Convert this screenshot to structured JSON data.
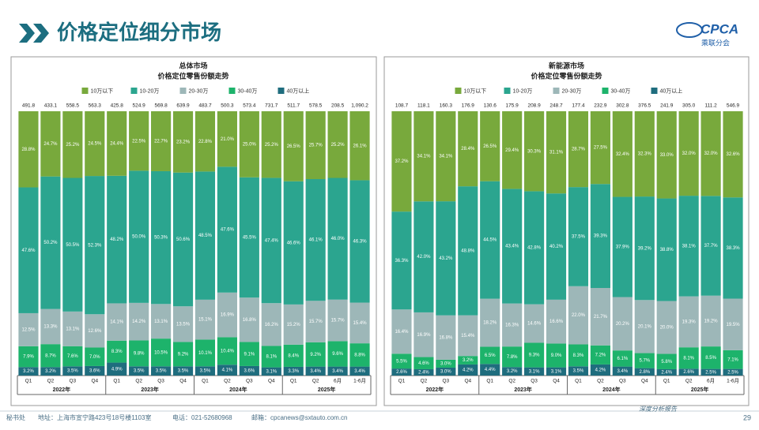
{
  "header": {
    "title": "价格定位细分市场",
    "logo": "CPCA",
    "logo_sub": "乘联分会"
  },
  "chart_data": [
    {
      "type": "bar",
      "stacked": true,
      "title": "总体市场",
      "subtitle": "价格定位零售份额走势",
      "categories": [
        "Q1",
        "Q2",
        "Q3",
        "Q4",
        "Q1",
        "Q2",
        "Q3",
        "Q4",
        "Q1",
        "Q2",
        "Q3",
        "Q4",
        "Q1",
        "Q2",
        "6月",
        "1-6月"
      ],
      "groups": [
        "2022年",
        "2023年",
        "2024年",
        "2025年"
      ],
      "totals": {
        "values": [
          491.8,
          433.1,
          558.5,
          563.3,
          425.8,
          524.9,
          569.8,
          639.9,
          483.7,
          500.3,
          573.4,
          731.7,
          511.7,
          578.5,
          208.5,
          1090.2
        ],
        "value_labels": [
          "491.8",
          "433.1",
          "558.5",
          "563.3",
          "425.8",
          "524.9",
          "569.8",
          "639.9",
          "483.7",
          "500.3",
          "573.4",
          "731.7",
          "511.7",
          "578.5",
          "208.5",
          "1,090.2"
        ]
      },
      "series": [
        {
          "name": "10万以下",
          "color": "#78a93c",
          "values": [
            28.8,
            24.7,
            25.2,
            24.5,
            24.4,
            22.5,
            22.7,
            23.2,
            22.8,
            21.0,
            25.0,
            25.2,
            26.5,
            25.7,
            25.2,
            26.1
          ],
          "value_labels": [
            "28.8%",
            "24.7%",
            "25.2%",
            "24.5%",
            "24.4%",
            "22.5%",
            "22.7%",
            "23.2%",
            "22.8%",
            "21.0%",
            "25.0%",
            "25.2%",
            "26.5%",
            "25.7%",
            "25.2%",
            "26.1%"
          ]
        },
        {
          "name": "10-20万",
          "color": "#2ba58f",
          "values": [
            47.6,
            50.2,
            50.5,
            52.3,
            48.2,
            50.0,
            50.3,
            50.6,
            48.5,
            47.6,
            45.5,
            47.4,
            46.6,
            46.1,
            46.0,
            46.3
          ],
          "value_labels": [
            "47.6%",
            "50.2%",
            "50.5%",
            "52.3%",
            "48.2%",
            "50.0%",
            "50.3%",
            "50.6%",
            "48.5%",
            "47.6%",
            "45.5%",
            "47.4%",
            "46.6%",
            "46.1%",
            "46.0%",
            "46.3%"
          ]
        },
        {
          "name": "20-30万",
          "color": "#9db7b8",
          "values": [
            12.5,
            13.3,
            13.1,
            12.6,
            14.1,
            14.2,
            13.1,
            13.5,
            15.1,
            16.9,
            16.8,
            16.2,
            15.2,
            15.7,
            15.7,
            15.4
          ],
          "value_labels": [
            "12.5%",
            "13.3%",
            "13.1%",
            "12.6%",
            "14.1%",
            "14.2%",
            "13.1%",
            "13.5%",
            "15.1%",
            "16.9%",
            "16.8%",
            "16.2%",
            "15.2%",
            "15.7%",
            "15.7%",
            "15.4%"
          ]
        },
        {
          "name": "30-40万",
          "color": "#1db36b",
          "values": [
            7.9,
            8.7,
            7.6,
            7.0,
            8.3,
            9.8,
            10.5,
            9.2,
            10.1,
            10.4,
            9.1,
            8.1,
            8.4,
            9.2,
            9.6,
            8.8
          ],
          "value_labels": [
            "7.9%",
            "8.7%",
            "7.6%",
            "7.0%",
            "8.3%",
            "9.8%",
            "10.5%",
            "9.2%",
            "10.1%",
            "10.4%",
            "9.1%",
            "8.1%",
            "8.4%",
            "9.2%",
            "9.6%",
            "8.8%"
          ]
        },
        {
          "name": "40万以上",
          "color": "#1f6d7e",
          "values": [
            3.2,
            3.2,
            3.5,
            3.6,
            4.9,
            3.5,
            3.5,
            3.5,
            3.5,
            4.1,
            3.6,
            3.1,
            3.3,
            3.4,
            3.4,
            3.4
          ],
          "value_labels": [
            "3.2%",
            "3.2%",
            "3.5%",
            "3.6%",
            "4.9%",
            "3.5%",
            "3.5%",
            "3.5%",
            "3.5%",
            "4.1%",
            "3.6%",
            "3.1%",
            "3.3%",
            "3.4%",
            "3.4%",
            "3.4%"
          ]
        }
      ]
    },
    {
      "type": "bar",
      "stacked": true,
      "title": "新能源市场",
      "subtitle": "价格定位零售份额走势",
      "categories": [
        "Q1",
        "Q2",
        "Q3",
        "Q4",
        "Q1",
        "Q2",
        "Q3",
        "Q4",
        "Q1",
        "Q2",
        "Q3",
        "Q4",
        "Q1",
        "Q2",
        "6月",
        "1-6月"
      ],
      "groups": [
        "2022年",
        "2023年",
        "2024年",
        "2025年"
      ],
      "totals": {
        "values": [
          108.7,
          118.1,
          160.3,
          176.9,
          130.6,
          175.9,
          208.9,
          248.7,
          177.4,
          232.9,
          302.8,
          376.5,
          241.9,
          305.0,
          111.2,
          546.9
        ],
        "value_labels": [
          "108.7",
          "118.1",
          "160.3",
          "176.9",
          "130.6",
          "175.9",
          "208.9",
          "248.7",
          "177.4",
          "232.9",
          "302.8",
          "376.5",
          "241.9",
          "305.0",
          "111.2",
          "546.9"
        ]
      },
      "series": [
        {
          "name": "10万以下",
          "color": "#78a93c",
          "values": [
            37.2,
            34.1,
            34.1,
            28.4,
            26.5,
            29.4,
            30.3,
            31.1,
            28.7,
            27.5,
            32.4,
            32.3,
            33.0,
            32.0,
            32.0,
            32.6
          ],
          "value_labels": [
            "37.2%",
            "34.1%",
            "34.1%",
            "28.4%",
            "26.5%",
            "29.4%",
            "30.3%",
            "31.1%",
            "28.7%",
            "27.5%",
            "32.4%",
            "32.3%",
            "33.0%",
            "32.0%",
            "32.0%",
            "32.6%"
          ]
        },
        {
          "name": "10-20万",
          "color": "#2ba58f",
          "values": [
            36.3,
            42.0,
            43.2,
            48.8,
            44.5,
            43.4,
            42.8,
            40.2,
            37.5,
            39.3,
            37.9,
            39.2,
            38.8,
            38.1,
            37.7,
            38.3
          ],
          "value_labels": [
            "36.3%",
            "42.0%",
            "43.2%",
            "48.8%",
            "44.5%",
            "43.4%",
            "42.8%",
            "40.2%",
            "37.5%",
            "39.3%",
            "37.9%",
            "39.2%",
            "38.8%",
            "38.1%",
            "37.7%",
            "38.3%"
          ]
        },
        {
          "name": "20-30万",
          "color": "#9db7b8",
          "values": [
            16.4,
            16.9,
            16.8,
            15.4,
            18.2,
            16.3,
            14.6,
            16.6,
            22.0,
            21.7,
            20.2,
            20.1,
            20.0,
            19.3,
            19.2,
            19.5
          ],
          "value_labels": [
            "16.4%",
            "16.9%",
            "16.8%",
            "15.4%",
            "18.2%",
            "16.3%",
            "14.6%",
            "16.6%",
            "22.0%",
            "21.7%",
            "20.2%",
            "20.1%",
            "20.0%",
            "19.3%",
            "19.2%",
            "19.5%"
          ]
        },
        {
          "name": "30-40万",
          "color": "#1db36b",
          "values": [
            5.5,
            4.6,
            3.0,
            3.2,
            6.5,
            7.8,
            9.3,
            9.0,
            8.3,
            7.2,
            6.1,
            5.7,
            5.8,
            8.1,
            8.5,
            7.1
          ],
          "value_labels": [
            "5.5%",
            "4.6%",
            "3.0%",
            "3.2%",
            "6.5%",
            "7.8%",
            "9.3%",
            "9.0%",
            "8.3%",
            "7.2%",
            "6.1%",
            "5.7%",
            "5.8%",
            "8.1%",
            "8.5%",
            "7.1%"
          ]
        },
        {
          "name": "40万以上",
          "color": "#1f6d7e",
          "values": [
            2.6,
            2.4,
            3.0,
            4.2,
            4.4,
            3.2,
            3.1,
            3.1,
            3.5,
            4.2,
            3.4,
            2.8,
            2.4,
            2.6,
            2.5,
            2.5
          ],
          "value_labels": [
            "2.6%",
            "2.4%",
            "3.0%",
            "4.2%",
            "4.4%",
            "3.2%",
            "3.1%",
            "3.1%",
            "3.5%",
            "4.2%",
            "3.4%",
            "2.8%",
            "2.4%",
            "2.6%",
            "2.5%",
            "2.5%"
          ]
        }
      ]
    }
  ],
  "footer": {
    "office": "秘书处",
    "address": "地址：上海市宣宁路423号18号楼1103室",
    "phone": "电话：021-52680968",
    "email": "邮箱：cpcanews@sxtauto.com.cn",
    "tag": "深度分析报告",
    "page": "29"
  }
}
